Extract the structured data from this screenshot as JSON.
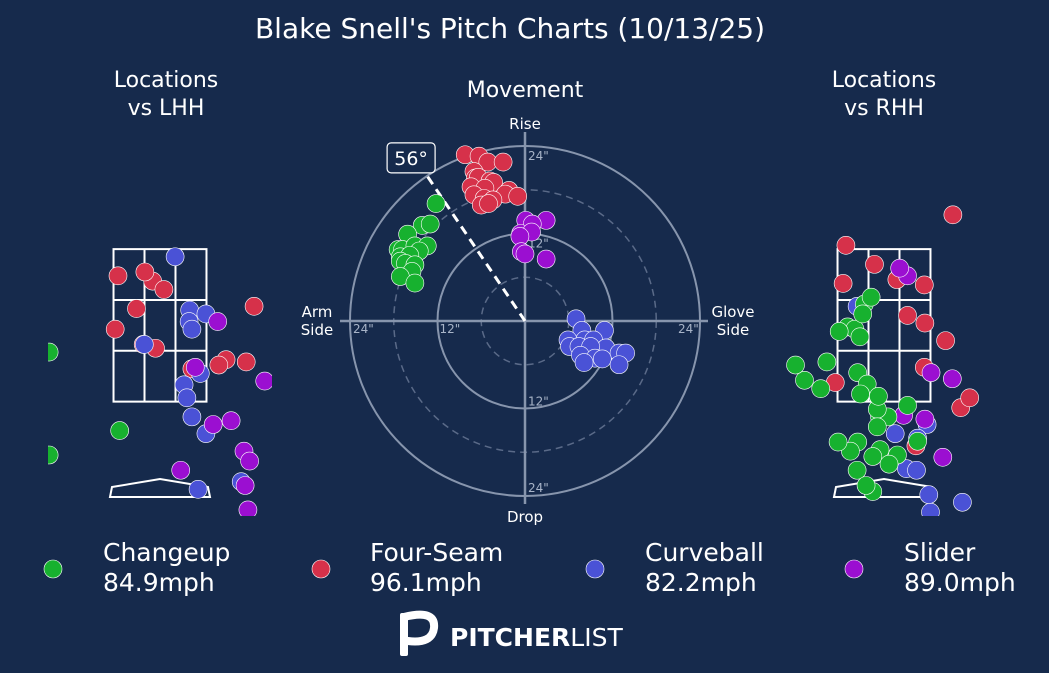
{
  "title": "Blake Snell's Pitch Charts (10/13/25)",
  "brand": {
    "name_bold": "PITCHER",
    "name_light": "LIST"
  },
  "colors": {
    "background": "#162a4c",
    "Changeup": "#17b12f",
    "Four-Seam": "#d6314a",
    "Curveball": "#4a52d6",
    "Slider": "#9b0fd1"
  },
  "legend": [
    {
      "name": "Changeup",
      "speed": "84.9mph"
    },
    {
      "name": "Four-Seam",
      "speed": "96.1mph"
    },
    {
      "name": "Curveball",
      "speed": "82.2mph"
    },
    {
      "name": "Slider",
      "speed": "89.0mph"
    }
  ],
  "chart_data": [
    {
      "type": "scatter",
      "title": "Locations\nvs LHH",
      "x_range": [
        -2.0,
        2.0
      ],
      "y_range": [
        0.0,
        4.8
      ],
      "strike_zone": {
        "x": [
          -0.83,
          0.83
        ],
        "y": [
          1.5,
          3.5
        ]
      },
      "series": [
        {
          "name": "Four-Seam",
          "x": [
            -0.75,
            -0.8,
            -0.13,
            0.07,
            -0.42,
            -0.08,
            1.68,
            1.18,
            1.05,
            0.57,
            1.54,
            -0.3,
            -0.27
          ],
          "y": [
            3.15,
            2.45,
            3.08,
            2.97,
            2.72,
            2.2,
            2.75,
            2.05,
            1.98,
            1.93,
            2.02,
            2.25,
            3.2
          ]
        },
        {
          "name": "Curveball",
          "x": [
            0.27,
            0.53,
            0.52,
            0.57,
            0.82,
            -0.28,
            0.43,
            0.48,
            0.57,
            0.82,
            0.72,
            1.45,
            0.68
          ],
          "y": [
            3.4,
            2.7,
            2.55,
            2.45,
            2.65,
            2.25,
            1.72,
            1.55,
            1.3,
            1.08,
            1.87,
            0.45,
            0.35
          ]
        },
        {
          "name": "Slider",
          "x": [
            1.03,
            0.63,
            0.95,
            1.27,
            1.5,
            1.6,
            1.52,
            1.57,
            0.37,
            1.87
          ],
          "y": [
            2.55,
            1.95,
            1.2,
            1.25,
            0.85,
            0.72,
            0.4,
            0.08,
            0.6,
            1.77
          ]
        },
        {
          "name": "Changeup",
          "x": [
            -1.98,
            -1.98,
            -0.72
          ],
          "y": [
            2.15,
            0.8,
            1.12
          ]
        }
      ]
    },
    {
      "type": "scatter",
      "title": "Movement",
      "labels": {
        "top": "Rise",
        "bottom": "Drop",
        "left": "Arm\nSide",
        "right": "Glove\nSide"
      },
      "rings": [
        12,
        24
      ],
      "ring_labels": [
        "12\"",
        "24\""
      ],
      "arm_angle": "56°",
      "x_range": [
        -24,
        24
      ],
      "y_range": [
        -24,
        24
      ],
      "series": [
        {
          "name": "Four-Seam",
          "x": [
            -8.2,
            -6.3,
            -5.1,
            -3.0,
            -7.0,
            -6.8,
            -6.4,
            -4.8,
            -4.3,
            -7.4,
            -5.5,
            -2.2,
            -2.7,
            -7.0,
            -5.6,
            -4.4,
            -1.0,
            -6.0,
            -5.0
          ],
          "y": [
            22.8,
            22.6,
            21.8,
            21.8,
            20.5,
            19.6,
            19.7,
            19.2,
            19.0,
            18.4,
            18.2,
            17.9,
            17.4,
            17.3,
            16.8,
            16.6,
            17.1,
            15.9,
            16.1
          ]
        },
        {
          "name": "Slider",
          "x": [
            2.9,
            0.1,
            1.0,
            -0.6,
            0.9,
            -0.7,
            -0.5,
            0.0,
            2.9
          ],
          "y": [
            13.8,
            13.8,
            13.3,
            12.0,
            12.2,
            11.6,
            9.5,
            9.2,
            8.5
          ]
        },
        {
          "name": "Curveball",
          "x": [
            7.0,
            7.8,
            10.9,
            5.9,
            8.2,
            9.4,
            11.1,
            6.1,
            7.4,
            9.0,
            12.9,
            13.8,
            7.6,
            9.6,
            8.1,
            10.6,
            12.9
          ],
          "y": [
            0.3,
            -1.3,
            -1.3,
            -2.6,
            -2.6,
            -2.6,
            -3.7,
            -3.5,
            -3.5,
            -3.5,
            -4.4,
            -4.4,
            -4.7,
            -5.1,
            -5.7,
            -5.2,
            -6.0
          ]
        },
        {
          "name": "Changeup",
          "x": [
            -12.2,
            -14.1,
            -13.0,
            -16.1,
            -17.4,
            -16.8,
            -15.1,
            -13.4,
            -17.1,
            -14.5,
            -15.8,
            -17.1,
            -16.4,
            -15.1,
            -15.5,
            -17.1,
            -15.1
          ],
          "y": [
            16.1,
            13.1,
            13.3,
            11.9,
            9.8,
            9.8,
            10.3,
            10.3,
            8.8,
            9.6,
            9.0,
            8.2,
            7.9,
            7.7,
            6.8,
            6.1,
            5.2
          ]
        }
      ]
    },
    {
      "type": "scatter",
      "title": "Locations\nvs RHH",
      "x_range": [
        -2.0,
        2.0
      ],
      "y_range": [
        0.0,
        4.8
      ],
      "strike_zone": {
        "x": [
          -0.83,
          0.83
        ],
        "y": [
          1.5,
          3.5
        ]
      },
      "series": [
        {
          "name": "Four-Seam",
          "x": [
            1.23,
            -0.17,
            -0.68,
            0.23,
            1.1,
            0.72,
            -0.73,
            0.73,
            0.42,
            0.72,
            1.37,
            -0.87,
            0.57,
            1.53
          ],
          "y": [
            3.95,
            3.3,
            3.55,
            3.1,
            2.3,
            1.95,
            3.05,
            2.53,
            2.63,
            3.03,
            1.42,
            1.75,
            0.92,
            1.55
          ]
        },
        {
          "name": "Curveball",
          "x": [
            0.77,
            0.4,
            1.4,
            0.83,
            0.8,
            0.58,
            0.6,
            0.2,
            -0.48
          ],
          "y": [
            1.2,
            0.62,
            0.18,
            0.05,
            0.28,
            0.6,
            1.02,
            1.08,
            2.75
          ]
        },
        {
          "name": "Slider",
          "x": [
            1.22,
            1.05,
            0.73,
            0.35,
            0.42,
            0.84,
            0.28
          ],
          "y": [
            1.8,
            0.77,
            1.27,
            1.32,
            3.15,
            1.88,
            3.25
          ]
        },
        {
          "name": "Changeup",
          "x": [
            -0.65,
            -0.52,
            -0.35,
            -0.23,
            -0.38,
            -0.08,
            0.07,
            0.24,
            0.6,
            0.42,
            -1.42,
            -1.13,
            -1.02,
            -1.58,
            -0.8,
            -0.43,
            -0.47,
            -0.3,
            -0.42,
            -0.12,
            -0.1,
            -0.12,
            -0.07,
            -0.47,
            -0.48,
            -0.2,
            -0.32,
            -0.2,
            -0.6,
            -0.82,
            0.09
          ],
          "y": [
            2.48,
            2.45,
            2.78,
            2.87,
            2.65,
            1.3,
            1.3,
            0.8,
            0.98,
            1.45,
            1.78,
            1.67,
            2.02,
            1.98,
            2.42,
            2.35,
            1.88,
            1.73,
            1.6,
            1.4,
            1.57,
            1.17,
            0.87,
            0.97,
            0.6,
            0.32,
            0.4,
            0.78,
            0.85,
            0.97,
            0.68
          ]
        }
      ]
    }
  ]
}
